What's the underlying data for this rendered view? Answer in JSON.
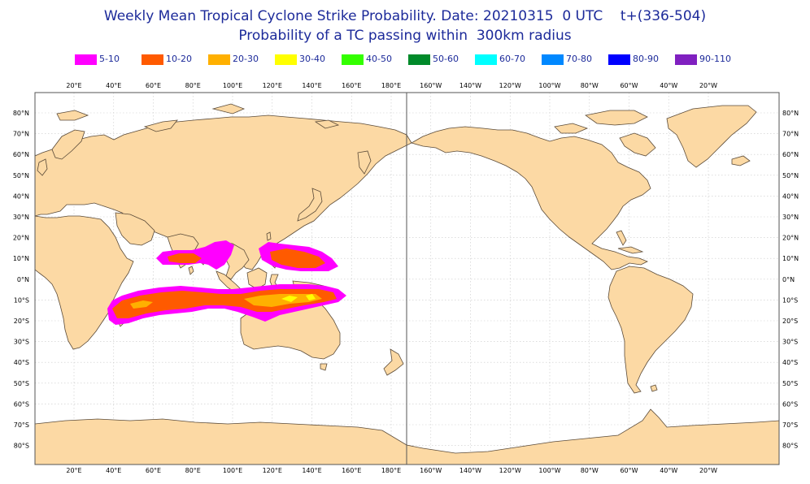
{
  "title": {
    "line1": "Weekly Mean Tropical Cyclone Strike Probability. Date: 20210315  0 UTC    t+(336-504)",
    "line2": "Probability of a TC passing within  300km radius"
  },
  "legend": [
    {
      "label": "5-10",
      "color": "#ff00ff"
    },
    {
      "label": "10-20",
      "color": "#ff5a00"
    },
    {
      "label": "20-30",
      "color": "#ffb000"
    },
    {
      "label": "30-40",
      "color": "#ffff00"
    },
    {
      "label": "40-50",
      "color": "#33ff00"
    },
    {
      "label": "50-60",
      "color": "#008a2a"
    },
    {
      "label": "60-70",
      "color": "#00ffff"
    },
    {
      "label": "70-80",
      "color": "#0088ff"
    },
    {
      "label": "80-90",
      "color": "#0000ff"
    },
    {
      "label": "90-110",
      "color": "#8020c0"
    }
  ],
  "axes": {
    "lon_labels": [
      "20°E",
      "40°E",
      "60°E",
      "80°E",
      "100°E",
      "120°E",
      "140°E",
      "160°E",
      "180°E",
      "160°W",
      "140°W",
      "120°W",
      "100°W",
      "80°W",
      "60°W",
      "40°W",
      "20°W"
    ],
    "lat_labels": [
      "80°N",
      "70°N",
      "60°N",
      "50°N",
      "40°N",
      "30°N",
      "20°N",
      "10°N",
      "0°N",
      "10°S",
      "20°S",
      "30°S",
      "40°S",
      "50°S",
      "60°S",
      "70°S",
      "80°S"
    ]
  },
  "colors": {
    "land": "#fcd9a4",
    "coast": "#5a4a38",
    "grid": "#c9c9c9",
    "frame": "#555555"
  }
}
